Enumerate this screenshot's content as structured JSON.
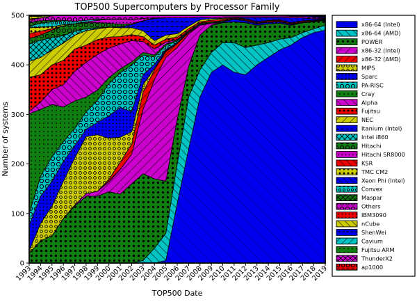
{
  "chart_data": {
    "type": "area",
    "stacked": true,
    "title": "TOP500 Supercomputers by Processor Family",
    "xlabel": "TOP500 Date",
    "ylabel": "Number of systems",
    "ylim": [
      0,
      500
    ],
    "yticks": [
      0,
      100,
      200,
      300,
      400,
      500
    ],
    "legend_position": "right",
    "grid": false,
    "x": [
      1993,
      1994,
      1995,
      1996,
      1997,
      1998,
      1999,
      2000,
      2001,
      2002,
      2003,
      2004,
      2005,
      2006,
      2007,
      2008,
      2009,
      2010,
      2011,
      2012,
      2013,
      2014,
      2015,
      2016,
      2017,
      2018,
      2019
    ],
    "series": [
      {
        "name": "x86-64 (Intel)",
        "color": "#0000ee",
        "hatch": "/",
        "hatch_gap": 13,
        "hatch_stroke": "#00007a",
        "values": [
          0,
          0,
          0,
          0,
          0,
          0,
          0,
          0,
          0,
          0,
          0,
          0,
          5,
          120,
          230,
          335,
          385,
          400,
          385,
          380,
          400,
          415,
          430,
          440,
          455,
          465,
          470
        ]
      },
      {
        "name": "x86-64 (AMD)",
        "color": "#00c3c3",
        "hatch": "/",
        "hatch_gap": 8,
        "values": [
          0,
          0,
          0,
          0,
          0,
          0,
          0,
          0,
          0,
          0,
          5,
          30,
          55,
          80,
          105,
          55,
          40,
          45,
          60,
          55,
          40,
          30,
          22,
          15,
          10,
          8,
          10
        ]
      },
      {
        "name": "POWER",
        "color": "#0f7d0f",
        "hatch": "*",
        "hatch_gap": 7,
        "values": [
          20,
          45,
          55,
          90,
          115,
          135,
          135,
          144,
          139,
          160,
          175,
          140,
          105,
          90,
          62,
          70,
          55,
          40,
          42,
          50,
          40,
          38,
          32,
          25,
          20,
          14,
          10
        ]
      },
      {
        "name": "x86-32 (Intel)",
        "color": "#cc00cc",
        "hatch": "\\",
        "hatch_gap": 9,
        "values": [
          0,
          0,
          0,
          0,
          2,
          5,
          10,
          20,
          50,
          60,
          130,
          200,
          250,
          145,
          65,
          20,
          4,
          0,
          0,
          0,
          0,
          0,
          0,
          0,
          0,
          0,
          0
        ]
      },
      {
        "name": "x86-32 (AMD)",
        "color": "#ee0000",
        "hatch": "\\",
        "hatch_gap": 7,
        "values": [
          0,
          0,
          0,
          0,
          0,
          0,
          0,
          5,
          15,
          20,
          35,
          20,
          12,
          8,
          3,
          0,
          0,
          0,
          0,
          0,
          0,
          0,
          0,
          0,
          0,
          0,
          0
        ]
      },
      {
        "name": "MIPS",
        "color": "#cccc00",
        "hatch": "o",
        "hatch_gap": 7,
        "values": [
          5,
          35,
          60,
          75,
          95,
          115,
          114,
          83,
          50,
          25,
          15,
          3,
          2,
          0,
          0,
          0,
          0,
          0,
          0,
          0,
          0,
          0,
          0,
          0,
          0,
          0,
          0
        ]
      },
      {
        "name": "Sparc",
        "color": "#0000ee",
        "hatch": ".",
        "hatch_gap": 5,
        "values": [
          51,
          55,
          50,
          40,
          25,
          15,
          25,
          45,
          60,
          40,
          20,
          8,
          2,
          2,
          2,
          2,
          1,
          2,
          5,
          4,
          3,
          3,
          3,
          2,
          1,
          1,
          1
        ]
      },
      {
        "name": "PA-RISC",
        "color": "#00c3c3",
        "hatch": "O",
        "hatch_gap": 8,
        "values": [
          25,
          40,
          50,
          40,
          35,
          35,
          45,
          65,
          70,
          95,
          40,
          15,
          8,
          3,
          0,
          0,
          0,
          0,
          0,
          0,
          0,
          0,
          0,
          0,
          0,
          0,
          0
        ]
      },
      {
        "name": "Cray",
        "color": "#0f7d0f",
        "hatch": ".",
        "hatch_gap": 6,
        "values": [
          200,
          135,
          105,
          70,
          55,
          30,
          20,
          12,
          8,
          6,
          5,
          4,
          3,
          2,
          2,
          2,
          2,
          2,
          1,
          1,
          1,
          1,
          1,
          0,
          0,
          0,
          0
        ]
      },
      {
        "name": "Alpha",
        "color": "#cc00cc",
        "hatch": "/",
        "hatch_gap": 8,
        "values": [
          5,
          15,
          30,
          45,
          60,
          70,
          72,
          60,
          50,
          43,
          22,
          12,
          4,
          1,
          0,
          0,
          0,
          0,
          0,
          0,
          0,
          0,
          0,
          0,
          0,
          0,
          0
        ]
      },
      {
        "name": "Fujitsu",
        "color": "#ee0000",
        "hatch": "*",
        "hatch_gap": 6,
        "values": [
          69,
          55,
          50,
          49,
          45,
          35,
          30,
          22,
          15,
          12,
          10,
          8,
          6,
          5,
          4,
          3,
          3,
          3,
          2,
          2,
          2,
          2,
          2,
          2,
          2,
          1,
          1
        ]
      },
      {
        "name": "NEC",
        "color": "#cccc00",
        "hatch": "\\",
        "hatch_gap": 8,
        "values": [
          32,
          35,
          30,
          35,
          28,
          29,
          22,
          20,
          18,
          14,
          12,
          9,
          8,
          7,
          5,
          4,
          3,
          2,
          1,
          1,
          1,
          1,
          1,
          1,
          1,
          1,
          1
        ]
      },
      {
        "name": "Itanium (Intel)",
        "color": "#0000ee",
        "hatch": "-",
        "hatch_gap": 7,
        "values": [
          0,
          0,
          0,
          0,
          0,
          0,
          0,
          0,
          2,
          6,
          20,
          45,
          35,
          32,
          17,
          5,
          2,
          1,
          0,
          0,
          0,
          0,
          0,
          0,
          0,
          0,
          0
        ]
      },
      {
        "name": "Intel i860",
        "color": "#00c3c3",
        "hatch": "x",
        "hatch_gap": 8,
        "values": [
          35,
          35,
          25,
          15,
          8,
          4,
          2,
          0,
          0,
          0,
          0,
          0,
          0,
          0,
          0,
          0,
          0,
          0,
          0,
          0,
          0,
          0,
          0,
          0,
          0,
          0,
          0
        ]
      },
      {
        "name": "Hitachi",
        "color": "#0f7d0f",
        "hatch": "O",
        "hatch_gap": 8,
        "values": [
          11,
          10,
          15,
          20,
          15,
          12,
          10,
          8,
          5,
          2,
          0,
          0,
          0,
          0,
          0,
          0,
          0,
          0,
          0,
          0,
          0,
          0,
          0,
          0,
          0,
          0,
          0
        ]
      },
      {
        "name": "Hitachi SR8000",
        "color": "#cc00cc",
        "hatch": ".",
        "hatch_gap": 5,
        "values": [
          0,
          0,
          0,
          0,
          0,
          2,
          5,
          8,
          10,
          8,
          5,
          1,
          0,
          0,
          0,
          0,
          0,
          0,
          0,
          0,
          0,
          0,
          0,
          0,
          0,
          0,
          0
        ]
      },
      {
        "name": "KSR",
        "color": "#ee0000",
        "hatch": "/",
        "hatch_gap": 7,
        "values": [
          10,
          8,
          3,
          0,
          0,
          0,
          0,
          0,
          0,
          0,
          0,
          0,
          0,
          0,
          0,
          0,
          0,
          0,
          0,
          0,
          0,
          0,
          0,
          0,
          0,
          0,
          0
        ]
      },
      {
        "name": "TMC CM2",
        "color": "#cccc00",
        "hatch": "*",
        "hatch_gap": 6,
        "values": [
          12,
          8,
          4,
          2,
          0,
          0,
          0,
          0,
          0,
          0,
          0,
          0,
          0,
          0,
          0,
          0,
          0,
          0,
          0,
          0,
          0,
          0,
          0,
          0,
          0,
          0,
          0
        ]
      },
      {
        "name": "Xeon Phi (Intel)",
        "color": "#0000ee",
        "hatch": "/",
        "hatch_gap": 6,
        "values": [
          0,
          0,
          0,
          0,
          0,
          0,
          0,
          0,
          0,
          0,
          0,
          0,
          0,
          0,
          0,
          0,
          0,
          0,
          0,
          3,
          9,
          6,
          5,
          10,
          6,
          3,
          1
        ]
      },
      {
        "name": "Convex",
        "color": "#00c3c3",
        "hatch": "o",
        "hatch_gap": 6,
        "values": [
          3,
          8,
          10,
          8,
          5,
          3,
          2,
          0,
          0,
          0,
          0,
          0,
          0,
          0,
          0,
          0,
          0,
          0,
          0,
          0,
          0,
          0,
          0,
          0,
          0,
          0,
          0
        ]
      },
      {
        "name": "Maspar",
        "color": "#0f7d0f",
        "hatch": "x",
        "hatch_gap": 7,
        "values": [
          7,
          5,
          3,
          1,
          0,
          0,
          0,
          0,
          0,
          0,
          0,
          0,
          0,
          0,
          0,
          0,
          0,
          0,
          0,
          0,
          0,
          0,
          0,
          0,
          0,
          0,
          0
        ]
      },
      {
        "name": "Others",
        "color": "#cc00cc",
        "hatch": "O",
        "hatch_gap": 8,
        "values": [
          5,
          6,
          9,
          10,
          12,
          10,
          8,
          8,
          8,
          9,
          6,
          5,
          5,
          5,
          5,
          4,
          5,
          4,
          3,
          3,
          3,
          3,
          3,
          3,
          3,
          3,
          1
        ]
      },
      {
        "name": "IBM3090",
        "color": "#ee0000",
        "hatch": ".",
        "hatch_gap": 5,
        "values": [
          3,
          0,
          0,
          0,
          0,
          0,
          0,
          0,
          0,
          0,
          0,
          0,
          0,
          0,
          0,
          0,
          0,
          0,
          0,
          0,
          0,
          0,
          0,
          0,
          0,
          0,
          0
        ]
      },
      {
        "name": "nCube",
        "color": "#cccc00",
        "hatch": "/",
        "hatch_gap": 7,
        "values": [
          5,
          3,
          1,
          0,
          0,
          0,
          0,
          0,
          0,
          0,
          0,
          0,
          0,
          0,
          0,
          0,
          0,
          0,
          0,
          0,
          0,
          0,
          0,
          0,
          0,
          0,
          0
        ]
      },
      {
        "name": "ShenWei",
        "color": "#0000ee",
        "hatch": "-",
        "hatch_gap": 6,
        "values": [
          0,
          0,
          0,
          0,
          0,
          0,
          0,
          0,
          0,
          0,
          0,
          0,
          0,
          0,
          0,
          0,
          0,
          1,
          1,
          1,
          1,
          1,
          1,
          2,
          2,
          2,
          2
        ]
      },
      {
        "name": "Cavium",
        "color": "#00c3c3",
        "hatch": "\\",
        "hatch_gap": 7,
        "values": [
          0,
          0,
          0,
          0,
          0,
          0,
          0,
          0,
          0,
          0,
          0,
          0,
          0,
          0,
          0,
          0,
          0,
          0,
          0,
          0,
          0,
          0,
          0,
          0,
          0,
          1,
          1
        ]
      },
      {
        "name": "Fujitsu ARM",
        "color": "#0f7d0f",
        "hatch": ".",
        "hatch_gap": 6,
        "values": [
          0,
          0,
          0,
          0,
          0,
          0,
          0,
          0,
          0,
          0,
          0,
          0,
          0,
          0,
          0,
          0,
          0,
          0,
          0,
          0,
          0,
          0,
          0,
          0,
          0,
          0,
          1
        ]
      },
      {
        "name": "ThunderX2",
        "color": "#cc00cc",
        "hatch": "x",
        "hatch_gap": 7,
        "values": [
          0,
          0,
          0,
          0,
          0,
          0,
          0,
          0,
          0,
          0,
          0,
          0,
          0,
          0,
          0,
          0,
          0,
          0,
          0,
          0,
          0,
          0,
          0,
          0,
          0,
          1,
          1
        ]
      },
      {
        "name": "ap1000",
        "color": "#ee0000",
        "hatch": "O",
        "hatch_gap": 7,
        "values": [
          2,
          2,
          0,
          0,
          0,
          0,
          0,
          0,
          0,
          0,
          0,
          0,
          0,
          0,
          0,
          0,
          0,
          0,
          0,
          0,
          0,
          0,
          0,
          0,
          0,
          0,
          0
        ]
      }
    ]
  },
  "style": {
    "axis_color": "#000000",
    "background": "#ffffff",
    "edge_color": "#000000"
  }
}
